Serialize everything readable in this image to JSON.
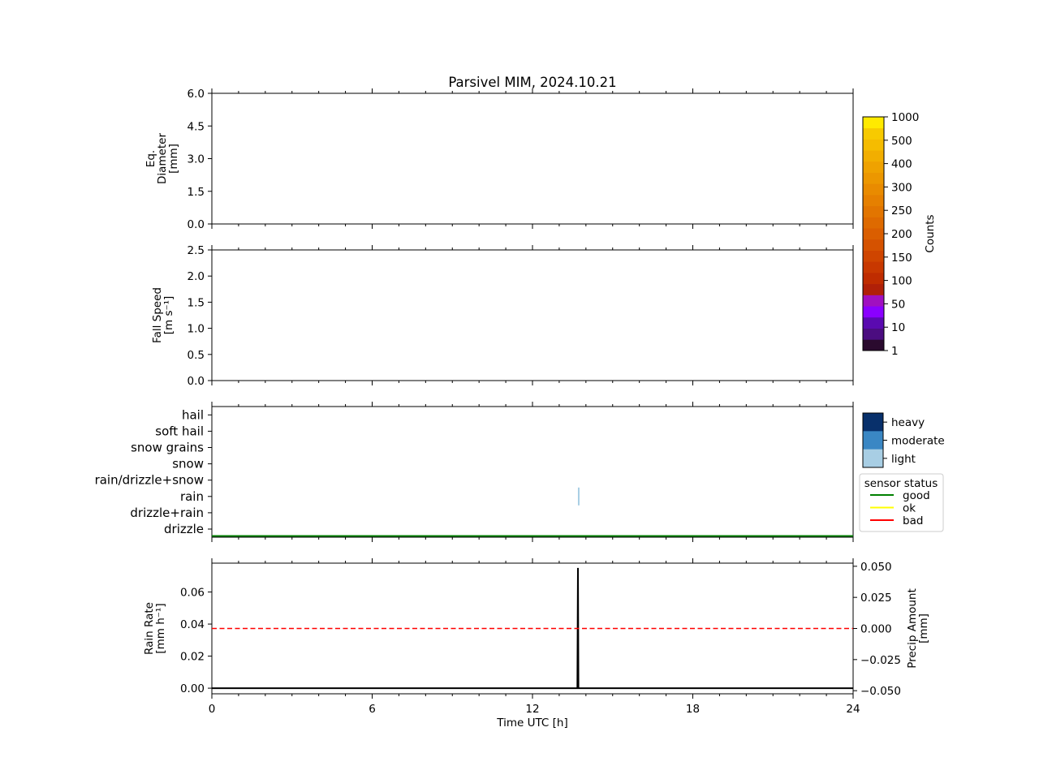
{
  "title": "Parsivel MIM, 2024.10.21",
  "x_axis": {
    "label": "Time UTC [h]",
    "range": [
      0,
      24
    ],
    "major_ticks": [
      "0",
      "6",
      "12",
      "18",
      "24"
    ],
    "minor_step": 1
  },
  "panels": {
    "diameter": {
      "ylabel_lines": [
        "Eq.",
        "Diameter",
        "[mm]"
      ],
      "ylim": [
        0,
        6
      ],
      "yticks": [
        "0.0",
        "1.5",
        "3.0",
        "4.5",
        "6.0"
      ]
    },
    "speed": {
      "ylabel_lines": [
        "Fall Speed",
        "[m s⁻¹]"
      ],
      "ylim": [
        0,
        2.5
      ],
      "yticks": [
        "0.0",
        "0.5",
        "1.0",
        "1.5",
        "2.0",
        "2.5"
      ]
    },
    "ptype": {
      "categories": [
        "drizzle",
        "drizzle+rain",
        "rain",
        "rain/drizzle+snow",
        "snow",
        "snow grains",
        "soft hail",
        "hail"
      ],
      "events": [
        {
          "category": "rain",
          "start_h": 13.7,
          "end_h": 13.73,
          "intensity": "light"
        }
      ],
      "sensor_status_line": {
        "status": "good",
        "from_h": 0,
        "to_h": 24
      }
    },
    "rain": {
      "ylabel_lines": [
        "Rain Rate",
        "[mm h⁻¹]"
      ],
      "ylim": [
        -0.0035,
        0.078
      ],
      "yticks": [
        "0.00",
        "0.02",
        "0.04",
        "0.06"
      ],
      "y2label_lines": [
        "Precip Amount",
        "[mm]"
      ],
      "y2lim": [
        -0.0525,
        0.0525
      ],
      "y2ticks": [
        "−0.050",
        "−0.025",
        "0.000",
        "0.025",
        "0.050"
      ]
    }
  },
  "chart_data": [
    {
      "type": "heatmap",
      "title": "Parsivel MIM, 2024.10.21",
      "xlabel": "Time UTC [h]",
      "ylabel": "Eq. Diameter [mm]",
      "xlim": [
        0,
        24
      ],
      "ylim": [
        0,
        6
      ],
      "values": []
    },
    {
      "type": "heatmap",
      "xlabel": "Time UTC [h]",
      "ylabel": "Fall Speed [m s⁻¹]",
      "xlim": [
        0,
        24
      ],
      "ylim": [
        0,
        2.5
      ],
      "values": []
    },
    {
      "type": "scatter",
      "xlabel": "Time UTC [h]",
      "categories": [
        "drizzle",
        "drizzle+rain",
        "rain",
        "rain/drizzle+snow",
        "snow",
        "snow grains",
        "soft hail",
        "hail"
      ],
      "points": [
        {
          "x": 13.7,
          "category": "rain",
          "intensity": "light"
        }
      ]
    },
    {
      "type": "line",
      "xlabel": "Time UTC [h]",
      "ylabel": "Rain Rate [mm h⁻¹]",
      "y2label": "Precip Amount [mm]",
      "xlim": [
        0,
        24
      ],
      "ylim": [
        -0.0035,
        0.078
      ],
      "y2lim": [
        -0.0525,
        0.0525
      ],
      "series": [
        {
          "axis": "left",
          "color": "#000000",
          "style": "solid",
          "x": [
            0,
            13.65,
            13.68,
            13.7,
            13.72,
            13.74,
            24
          ],
          "y": [
            0,
            0,
            0.0,
            0.075,
            0.0,
            0,
            0
          ]
        },
        {
          "axis": "right",
          "color": "#ff0000",
          "style": "dashed",
          "x": [
            0,
            24
          ],
          "y": [
            0.0,
            0.0
          ]
        }
      ]
    }
  ],
  "colorbar_counts": {
    "label": "Counts",
    "tick_labels": [
      "1",
      "10",
      "50",
      "100",
      "150",
      "200",
      "250",
      "300",
      "400",
      "500",
      "1000"
    ],
    "segment_colors": [
      "#2a0a2e",
      "#4b0d80",
      "#5a0ab0",
      "#8a00ff",
      "#a010c0",
      "#b02008",
      "#bf2c00",
      "#c83800",
      "#cf4500",
      "#d55200",
      "#da5e00",
      "#de6a00",
      "#e27500",
      "#e68000",
      "#e98b00",
      "#ec9700",
      "#efa200",
      "#f2ae00",
      "#f5bc00",
      "#f7ca00",
      "#ffea00"
    ]
  },
  "intensity_legend": {
    "items": [
      {
        "label": "heavy",
        "color": "#08306b"
      },
      {
        "label": "moderate",
        "color": "#3a87c4"
      },
      {
        "label": "light",
        "color": "#a8cee4"
      }
    ]
  },
  "sensor_legend": {
    "title": "sensor status",
    "items": [
      {
        "label": "good",
        "color": "#008000"
      },
      {
        "label": "ok",
        "color": "#ffff00"
      },
      {
        "label": "bad",
        "color": "#ff0000"
      }
    ]
  }
}
